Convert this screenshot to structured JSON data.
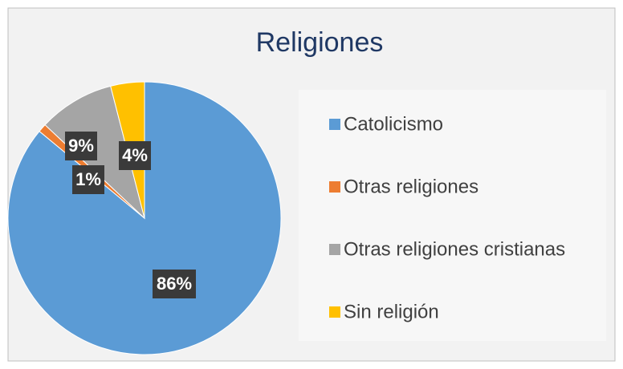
{
  "chart_data": {
    "type": "pie",
    "title": "Religiones",
    "categories": [
      "Catolicismo",
      "Otras religiones",
      "Otras religiones cristianas",
      "Sin religión"
    ],
    "values": [
      86,
      1,
      9,
      4
    ],
    "value_labels": [
      "86%",
      "1%",
      "9%",
      "4%"
    ],
    "colors": [
      "#5b9bd5",
      "#ed7d31",
      "#a5a5a5",
      "#ffc000"
    ],
    "legend": "right"
  }
}
